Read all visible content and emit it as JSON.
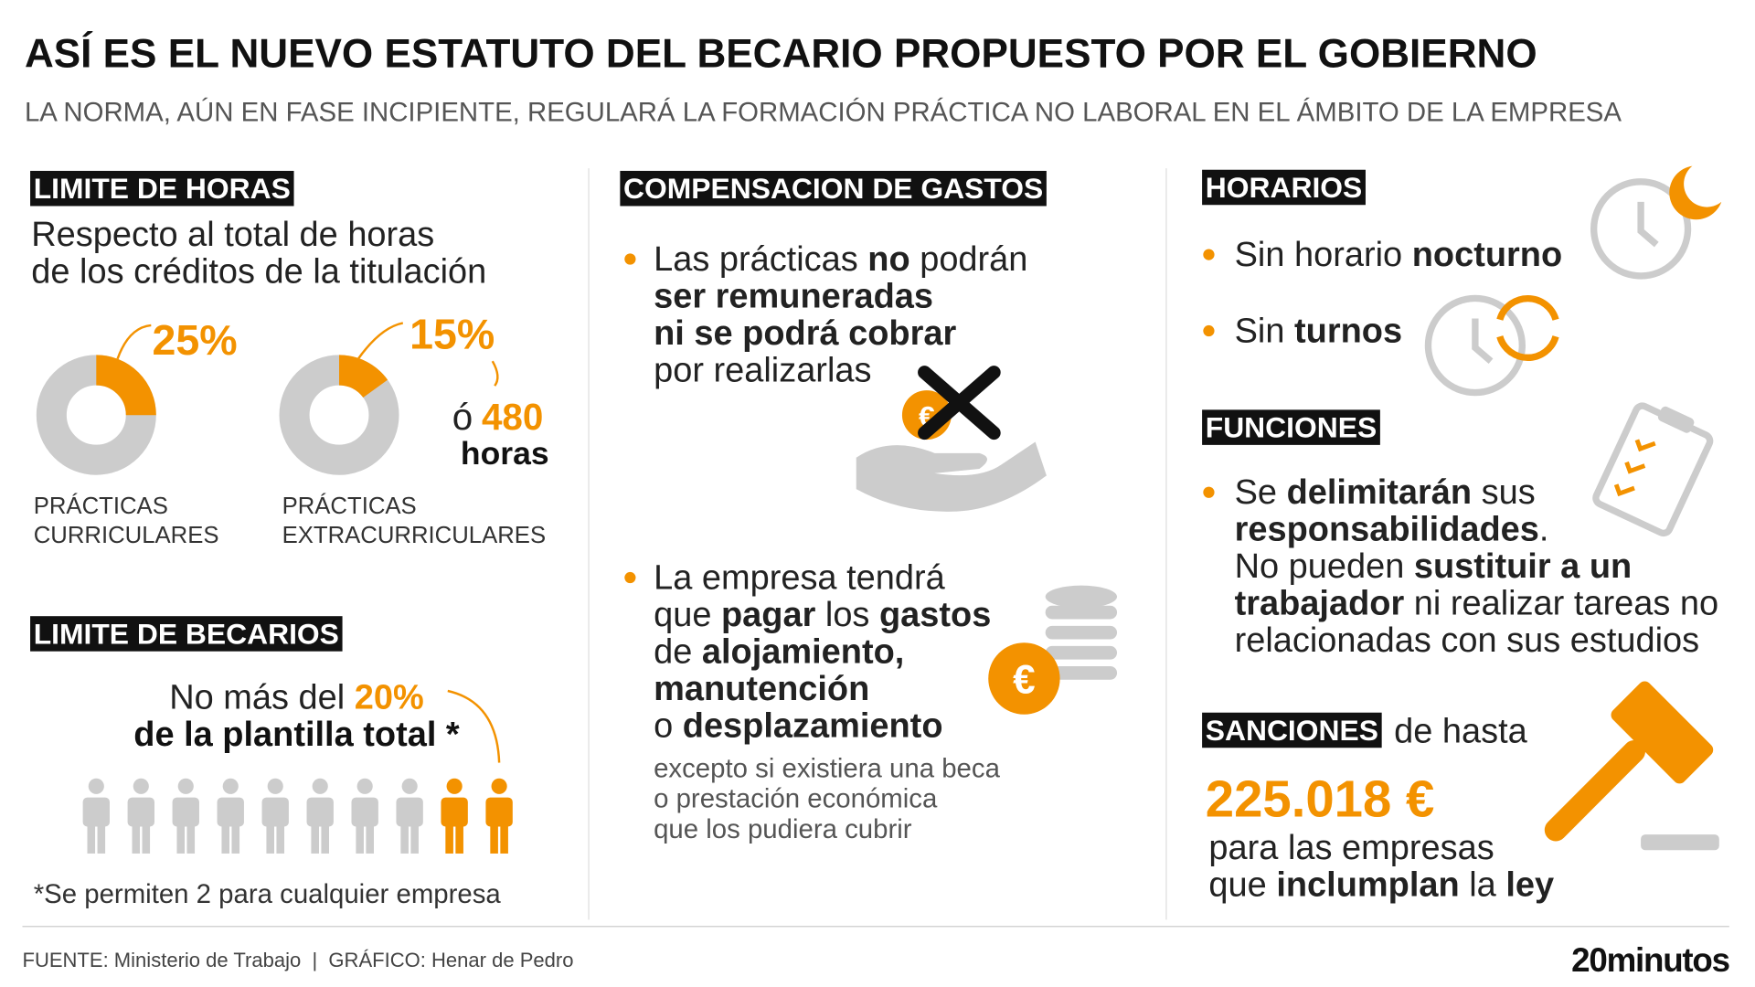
{
  "header": {
    "title": "ASÍ ES EL NUEVO ESTATUTO DEL BECARIO PROPUESTO POR EL GOBIERNO",
    "subtitle": "LA NORMA, AÚN EN FASE INCIPIENTE, REGULARÁ LA FORMACIÓN PRÁCTICA NO LABORAL EN EL ÁMBITO DE LA EMPRESA"
  },
  "horas": {
    "label": "LIMITE DE HORAS",
    "intro": [
      [
        "Respecto al total de horas"
      ],
      [
        "de los créditos de la titulación"
      ]
    ],
    "donuts": [
      {
        "value": 25,
        "label": "25%",
        "caption": [
          "PRÁCTICAS",
          "CURRICULARES"
        ]
      },
      {
        "value": 15,
        "label": "15%",
        "caption": [
          "PRÁCTICAS",
          "EXTRACURRICULARES"
        ]
      }
    ],
    "alt_prefix": "ó",
    "alt_value": "480",
    "alt_unit": "horas"
  },
  "becarios": {
    "label": "LIMITE DE BECARIOS",
    "line1": "No más del ",
    "pct": {
      "value": 20,
      "label": "20%"
    },
    "line2": "de la plantilla total *",
    "note": "*Se permiten 2 para cualquier empresa"
  },
  "gastos": {
    "label": "COMPENSACION DE GASTOS",
    "bullet1": [
      [
        "Las prácticas ",
        {
          "bold": "no"
        },
        " podrán"
      ],
      [
        {
          "bold": "ser remuneradas"
        }
      ],
      [
        {
          "bold": "ni se podrá cobrar"
        }
      ],
      [
        "por realizarlas"
      ]
    ],
    "bullet2": [
      [
        "La empresa tendrá"
      ],
      [
        "que ",
        {
          "bold": "pagar"
        },
        " los ",
        {
          "bold": "gastos"
        }
      ],
      [
        "de ",
        {
          "bold": "alojamiento,"
        }
      ],
      [
        {
          "bold": "manutención"
        }
      ],
      [
        "o ",
        {
          "bold": "desplazamiento"
        }
      ]
    ],
    "note": [
      [
        "excepto si existiera una beca"
      ],
      [
        "o prestación económica"
      ],
      [
        "que los pudiera cubrir"
      ]
    ]
  },
  "horarios": {
    "label": "HORARIOS",
    "bullet1": [
      [
        "Sin horario ",
        {
          "bold": "nocturno"
        }
      ]
    ],
    "bullet2": [
      [
        "Sin ",
        {
          "bold": "turnos"
        }
      ]
    ]
  },
  "funciones": {
    "label": "FUNCIONES",
    "bullet": [
      [
        "Se ",
        {
          "bold": "delimitarán"
        },
        " sus"
      ],
      [
        {
          "bold": "responsabilidades"
        },
        "."
      ],
      [
        "No pueden ",
        {
          "bold": "sustituir a un"
        }
      ],
      [
        {
          "bold": "trabajador"
        },
        " ni realizar tareas no"
      ],
      [
        "relacionadas con sus estudios"
      ]
    ]
  },
  "sanciones": {
    "label": "SANCIONES",
    "after": "de hasta",
    "amount": "225.018 €",
    "tail": [
      [
        "para las empresas"
      ],
      [
        "que ",
        {
          "bold": "inclumplan"
        },
        " la ",
        {
          "bold": "ley"
        }
      ]
    ]
  },
  "footer": {
    "source": "FUENTE: Ministerio de Trabajo  |  GRÁFICO: Henar de Pedro",
    "logo": "20minutos"
  }
}
